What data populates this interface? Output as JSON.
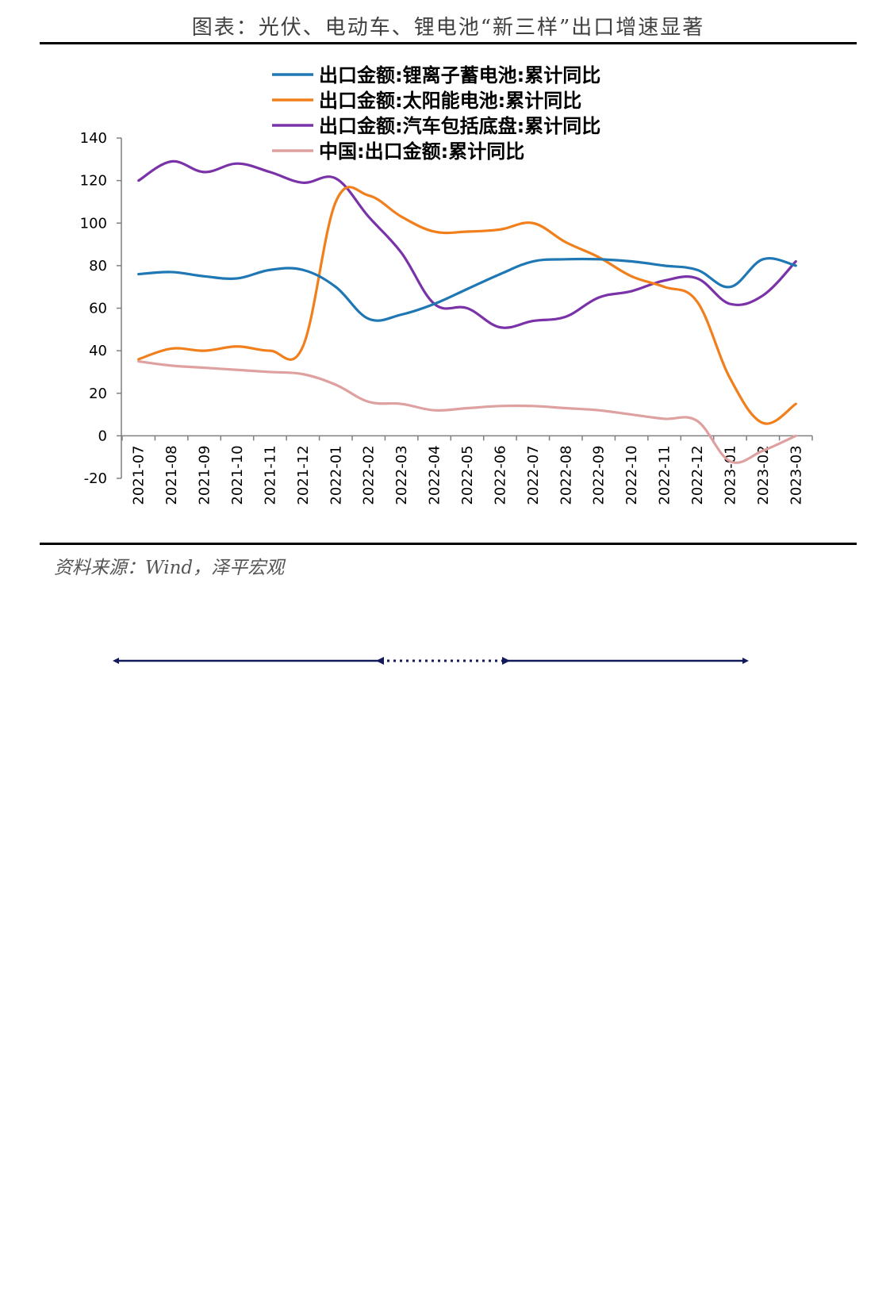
{
  "title": "图表：光伏、电动车、锂电池“新三样”出口增速显著",
  "source": "资料来源：Wind，泽平宏观",
  "chart_data": {
    "type": "line",
    "title": "图表：光伏、电动车、锂电池“新三样”出口增速显著",
    "xlabel": "",
    "ylabel": "",
    "ylim": [
      -20,
      140
    ],
    "yticks": [
      140,
      120,
      100,
      80,
      60,
      40,
      20,
      0,
      -20
    ],
    "grid": false,
    "legend_position": "top-center",
    "categories": [
      "2021-07",
      "2021-08",
      "2021-09",
      "2021-10",
      "2021-11",
      "2021-12",
      "2022-01",
      "2022-02",
      "2022-03",
      "2022-04",
      "2022-05",
      "2022-06",
      "2022-07",
      "2022-08",
      "2022-09",
      "2022-10",
      "2022-11",
      "2022-12",
      "2023-01",
      "2023-02",
      "2023-03"
    ],
    "series": [
      {
        "name": "出口金额:锂离子蓄电池:累计同比",
        "color": "#1f77b4",
        "values": [
          76,
          77,
          75,
          74,
          78,
          78,
          70,
          55,
          57,
          62,
          69,
          76,
          82,
          83,
          83,
          82,
          80,
          78,
          70,
          83,
          80
        ]
      },
      {
        "name": "出口金额:太阳能电池:累计同比",
        "color": "#f07f1c",
        "values": [
          36,
          41,
          40,
          42,
          40,
          42,
          110,
          113,
          103,
          96,
          96,
          97,
          100,
          91,
          84,
          75,
          70,
          63,
          27,
          6,
          15
        ]
      },
      {
        "name": "出口金额:汽车包括底盘:累计同比",
        "color": "#7a32a8",
        "values": [
          120,
          129,
          124,
          128,
          124,
          119,
          121,
          103,
          86,
          62,
          60,
          51,
          54,
          56,
          65,
          68,
          73,
          74,
          62,
          66,
          82
        ]
      },
      {
        "name": "中国:出口金额:累计同比",
        "color": "#dfa0a0",
        "values": [
          35,
          33,
          32,
          31,
          30,
          29,
          24,
          16,
          15,
          12,
          13,
          14,
          14,
          13,
          12,
          10,
          8,
          7,
          -12,
          -7,
          0
        ]
      }
    ]
  }
}
